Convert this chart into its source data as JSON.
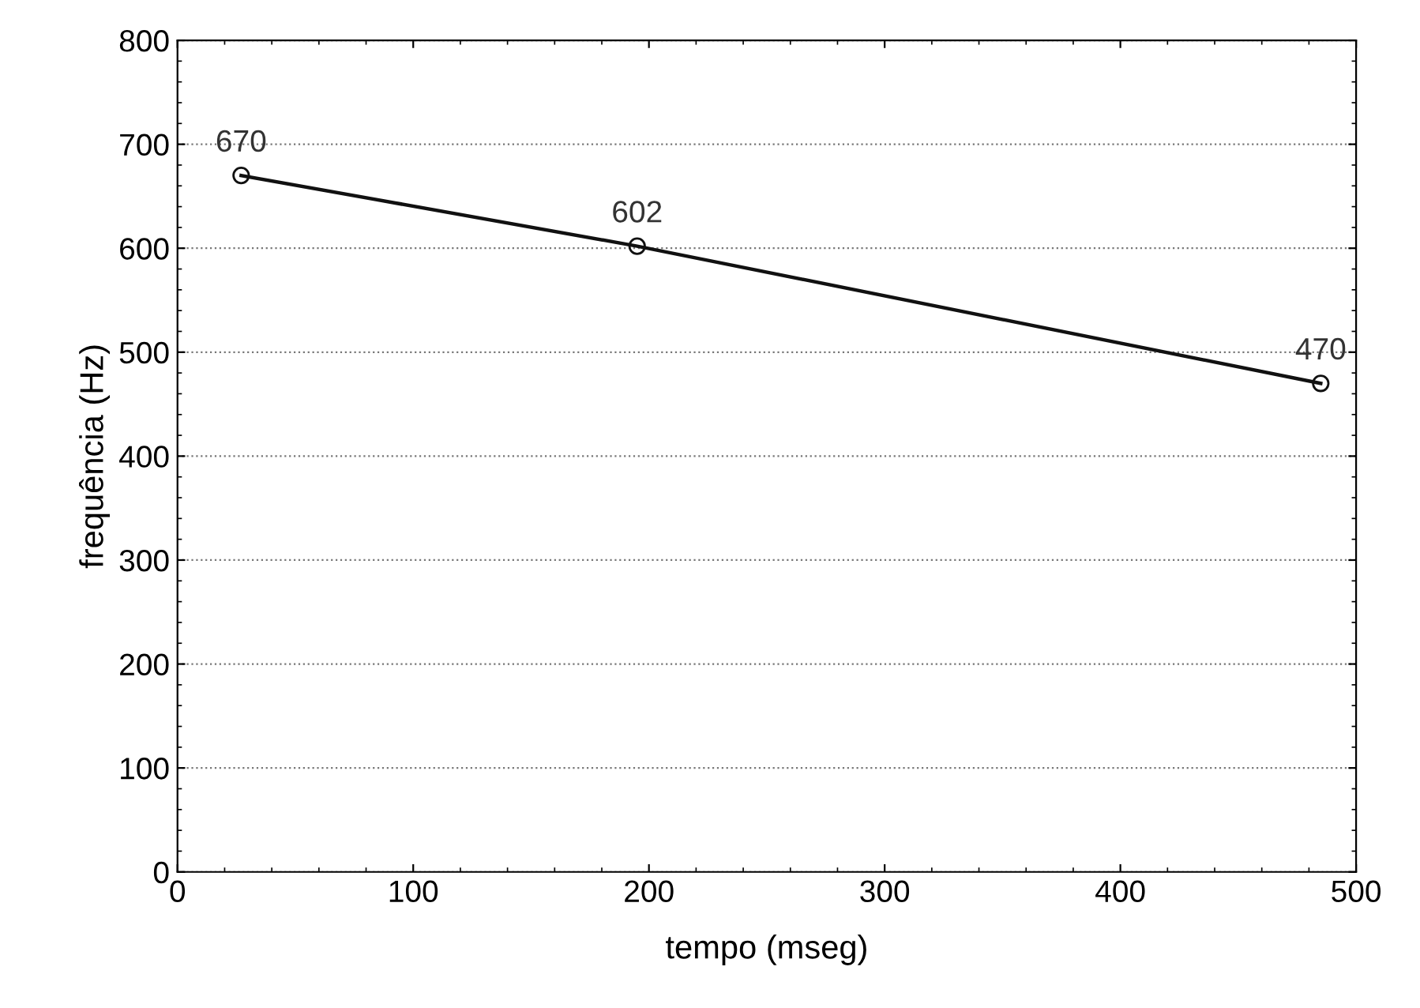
{
  "chart_data": {
    "type": "line",
    "xlabel": "tempo (mseg)",
    "ylabel": "frequência (Hz)",
    "x": [
      27,
      195,
      485
    ],
    "series": [
      {
        "color": "#111111",
        "values": [
          670,
          602,
          470
        ]
      }
    ],
    "data_labels": true,
    "marker": "circle",
    "line_style": "solid",
    "grid": "y",
    "xlim": [
      0,
      500
    ],
    "xticks": [
      0,
      100,
      200,
      300,
      400,
      500
    ],
    "ylim": [
      0,
      800
    ],
    "yticks": [
      0,
      100,
      200,
      300,
      400,
      500,
      600,
      700,
      800
    ]
  }
}
